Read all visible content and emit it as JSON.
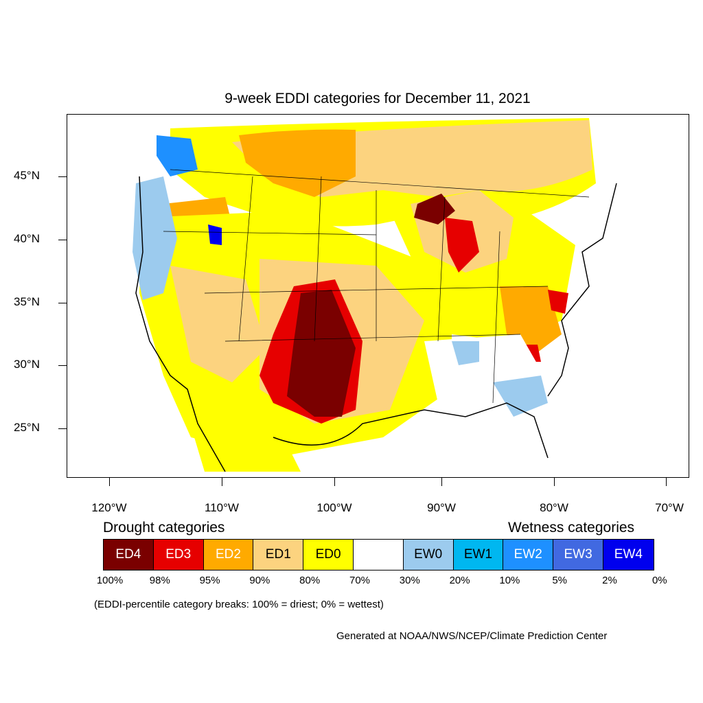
{
  "title": "9-week EDDI categories for December 11, 2021",
  "lat_labels": [
    "45°N",
    "40°N",
    "35°N",
    "30°N",
    "25°N"
  ],
  "lon_labels": [
    "120°W",
    "110°W",
    "100°W",
    "90°W",
    "80°W",
    "70°W"
  ],
  "legend": {
    "drought_heading": "Drought categories",
    "wetness_heading": "Wetness categories",
    "categories": [
      {
        "label": "ED4",
        "color": "#7a0000",
        "text_color": "#ffffff"
      },
      {
        "label": "ED3",
        "color": "#e60000",
        "text_color": "#ffffff"
      },
      {
        "label": "ED2",
        "color": "#ffaa00",
        "text_color": "#ffffff"
      },
      {
        "label": "ED1",
        "color": "#fcd37f",
        "text_color": "#000000"
      },
      {
        "label": "ED0",
        "color": "#ffff00",
        "text_color": "#000000"
      },
      {
        "label": "",
        "color": "#ffffff",
        "text_color": "#000000"
      },
      {
        "label": "EW0",
        "color": "#9ccbee",
        "text_color": "#000000"
      },
      {
        "label": "EW1",
        "color": "#00b7f0",
        "text_color": "#000000"
      },
      {
        "label": "EW2",
        "color": "#1e90ff",
        "text_color": "#ffffff"
      },
      {
        "label": "EW3",
        "color": "#4169e1",
        "text_color": "#ffffff"
      },
      {
        "label": "EW4",
        "color": "#0000ee",
        "text_color": "#ffffff"
      }
    ],
    "percent_breaks": [
      "100%",
      "98%",
      "95%",
      "90%",
      "80%",
      "70%",
      "30%",
      "20%",
      "10%",
      "5%",
      "2%",
      "0%"
    ]
  },
  "note": "(EDDI-percentile category breaks: 100% = driest; 0% = wettest)",
  "credit": "Generated at NOAA/NWS/NCEP/Climate Prediction Center"
}
